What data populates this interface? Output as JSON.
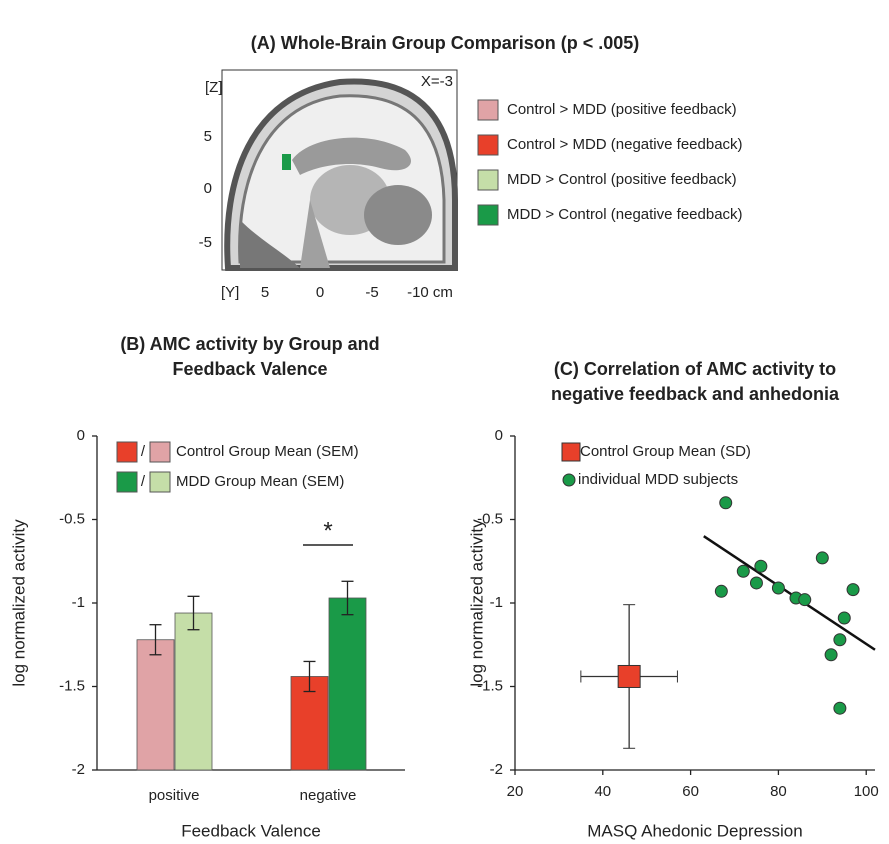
{
  "panel_a": {
    "title": "(A) Whole-Brain Group Comparison (p < .005)",
    "z_label": "[Z]",
    "slice_label": "X=-3",
    "y_label": "[Y]",
    "z_ticks": [
      "5",
      "0",
      "-5"
    ],
    "y_ticks": [
      "5",
      "0",
      "-5",
      "-10 cm"
    ],
    "legend": [
      {
        "name": "Control > MDD (positive feedback)",
        "color": "#e0a3a6"
      },
      {
        "name": "Control > MDD (negative feedback)",
        "color": "#e8402a"
      },
      {
        "name": "MDD > Control (positive feedback)",
        "color": "#c5dea8"
      },
      {
        "name": "MDD > Control (negative feedback)",
        "color": "#1a9a48"
      }
    ]
  },
  "chart_data": [
    {
      "type": "bar",
      "title": [
        "(B) AMC activity by Group and",
        "Feedback Valence"
      ],
      "x_label": "Feedback Valence",
      "y_label": "log normalized activity",
      "categories": [
        "positive",
        "negative"
      ],
      "series": [
        {
          "name": "Control Group Mean (SEM)",
          "colors": [
            "#e0a3a6",
            "#e8402a"
          ],
          "values": [
            -1.22,
            -1.44
          ],
          "errors": [
            0.09,
            0.09
          ]
        },
        {
          "name": "MDD Group Mean (SEM)",
          "colors": [
            "#c5dea8",
            "#1a9a48"
          ],
          "values": [
            -1.06,
            -0.97
          ],
          "errors": [
            0.1,
            0.1
          ]
        }
      ],
      "legend_separator": "/",
      "annotation": "*",
      "ylim": [
        -2,
        0
      ],
      "yticks": [
        0,
        -0.5,
        -1,
        -1.5,
        -2
      ]
    },
    {
      "type": "scatter",
      "title": [
        "(C) Correlation of AMC activity to",
        "negative feedback and anhedonia"
      ],
      "x_label": "MASQ Ahedonic Depression",
      "y_label": "log normalized activity",
      "series": [
        {
          "name": "Control Group Mean (SD)",
          "color": "#e8402a",
          "marker": "square",
          "x": [
            46
          ],
          "values": [
            -1.44
          ],
          "xerr": [
            11
          ],
          "yerr": [
            0.43
          ]
        },
        {
          "name": "individual MDD subjects",
          "color": "#1a9a48",
          "marker": "circle",
          "x": [
            67,
            68,
            72,
            75,
            76,
            80,
            84,
            86,
            90,
            92,
            94,
            95,
            97,
            94
          ],
          "values": [
            -0.93,
            -0.4,
            -0.81,
            -0.88,
            -0.78,
            -0.91,
            -0.97,
            -0.98,
            -0.73,
            -1.31,
            -1.22,
            -1.09,
            -0.92,
            -1.63
          ]
        }
      ],
      "fit_line": {
        "x": [
          63,
          102
        ],
        "values": [
          -0.6,
          -1.28
        ]
      },
      "xlim": [
        20,
        102
      ],
      "xticks": [
        20,
        40,
        60,
        80,
        100
      ],
      "ylim": [
        -2,
        0
      ],
      "yticks": [
        0,
        -0.5,
        -1,
        -1.5,
        -2
      ]
    }
  ]
}
